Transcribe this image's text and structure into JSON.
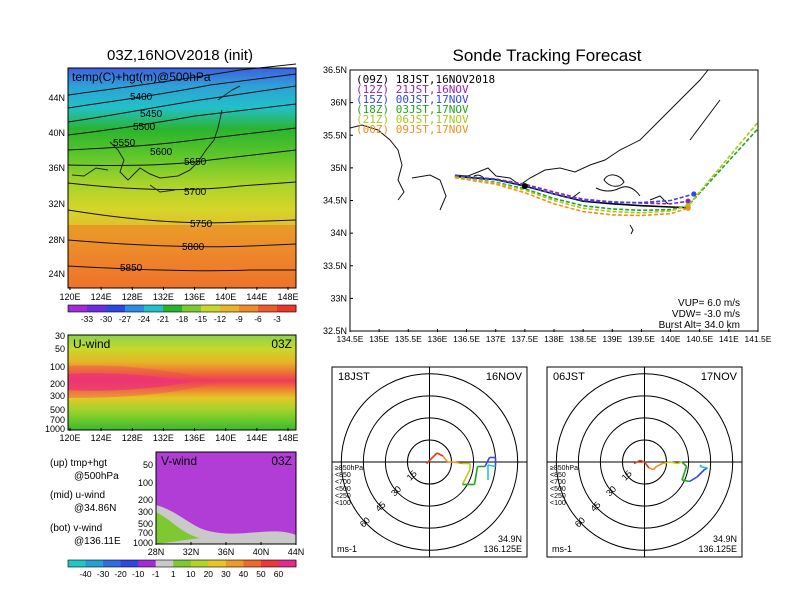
{
  "panels": {
    "map500": {
      "title": "03Z,16NOV2018 (init)",
      "label": "temp(C)+hgt(m)@500hPa",
      "xticks": [
        "120E",
        "124E",
        "128E",
        "132E",
        "136E",
        "140E",
        "144E",
        "148E"
      ],
      "yticks": [
        "44N",
        "40N",
        "36N",
        "32N",
        "28N",
        "24N"
      ],
      "contours": [
        "5400",
        "5450",
        "5500",
        "5550",
        "5600",
        "5650",
        "5700",
        "5750",
        "5800",
        "5850"
      ],
      "colorbar": [
        "-33",
        "-30",
        "-27",
        "-24",
        "-21",
        "-18",
        "-15",
        "-12",
        "-9",
        "-6",
        "-3"
      ]
    },
    "uwind": {
      "label": "U-wind",
      "time": "03Z",
      "yticks": [
        "30",
        "50",
        "100",
        "200",
        "300",
        "500",
        "700",
        "1000"
      ],
      "xticks": [
        "120E",
        "124E",
        "128E",
        "132E",
        "136E",
        "140E",
        "144E",
        "148E"
      ]
    },
    "vwind": {
      "label": "V-wind",
      "time": "03Z",
      "yticks": [
        "50",
        "100",
        "200",
        "300",
        "500",
        "700",
        "1000"
      ],
      "xticks": [
        "28N",
        "32N",
        "36N",
        "40N",
        "44N"
      ],
      "colorbar": [
        "-40",
        "-30",
        "-20",
        "-10",
        "-1",
        "1",
        "10",
        "20",
        "30",
        "40",
        "50",
        "60"
      ]
    },
    "legend": {
      "up": [
        "(up) tmp+hgt",
        "@500hPa"
      ],
      "mid": [
        "(mid) u-wind",
        "@34.86N"
      ],
      "bot": [
        "(bot) v-wind",
        "@136.11E"
      ]
    },
    "tracking": {
      "title": "Sonde Tracking Forecast",
      "runs": [
        {
          "label": "(09Z)  18JST,16NOV2018",
          "color": "#000000"
        },
        {
          "label": "(12Z)  21JST,16NOV",
          "color": "#9a1fb0"
        },
        {
          "label": "(15Z)  00JST,17NOV",
          "color": "#2f49e6"
        },
        {
          "label": "(18Z)  03JST,17NOV",
          "color": "#1fa51f"
        },
        {
          "label": "(21Z)  06JST,17NOV",
          "color": "#a7c81a"
        },
        {
          "label": "(00Z)  09JST,17NOV",
          "color": "#f0911e"
        }
      ],
      "xticks": [
        "134.5E",
        "135E",
        "135.5E",
        "136E",
        "136.5E",
        "137E",
        "137.5E",
        "138E",
        "138.5E",
        "139E",
        "139.5E",
        "140E",
        "140.5E",
        "141E",
        "141.5E"
      ],
      "yticks": [
        "36.5N",
        "36N",
        "35.5N",
        "35N",
        "34.5N",
        "34N",
        "33.5N",
        "33N",
        "32.5N"
      ],
      "params": [
        "VUP=  6.0  m/s",
        "VDW=  -3.0  m/s",
        "Burst Alt=  34.0  km"
      ]
    },
    "hodo1": {
      "time": "18JST",
      "date": "16NOV",
      "rings": [
        "15",
        "30",
        "45",
        "60"
      ],
      "levels": [
        "≥850hPa",
        "<850",
        "<700",
        "<500",
        "<250",
        "<100"
      ],
      "unit": "ms-1",
      "lat": "34.9N",
      "lon": "136.125E"
    },
    "hodo2": {
      "time": "06JST",
      "date": "17NOV",
      "rings": [
        "15",
        "30",
        "45",
        "60"
      ],
      "levels": [
        "≥850hPa",
        "<850",
        "<700",
        "<500",
        "<250",
        "<100"
      ],
      "unit": "ms-1",
      "lat": "34.9N",
      "lon": "136.125E"
    }
  },
  "level_colors": [
    "#e8361f",
    "#f0911e",
    "#c8c81a",
    "#1fa51f",
    "#2f49e6",
    "#1fc8c8"
  ],
  "chart_data": [
    {
      "type": "line",
      "title": "Sonde Tracking Forecast",
      "xlabel": "",
      "ylabel": "",
      "xlim": [
        134.5,
        141.5
      ],
      "ylim": [
        32.5,
        36.5
      ],
      "grid": false,
      "legend": "top-left",
      "series": [
        {
          "name": "(09Z) 18JST,16NOV2018",
          "points": [
            [
              136.3,
              34.87
            ],
            [
              137.0,
              34.82
            ],
            [
              137.5,
              34.72
            ],
            [
              138.0,
              34.6
            ],
            [
              138.5,
              34.49
            ],
            [
              139.0,
              34.45
            ],
            [
              139.5,
              34.42
            ],
            [
              140.0,
              34.4
            ],
            [
              140.3,
              34.39
            ]
          ]
        },
        {
          "name": "(12Z) 21JST,16NOV",
          "points": [
            [
              136.3,
              34.88
            ],
            [
              137.0,
              34.83
            ],
            [
              137.5,
              34.75
            ],
            [
              138.0,
              34.63
            ],
            [
              138.5,
              34.52
            ],
            [
              139.0,
              34.48
            ],
            [
              139.5,
              34.46
            ],
            [
              140.0,
              34.45
            ],
            [
              140.3,
              34.49
            ]
          ]
        },
        {
          "name": "(15Z) 00JST,17NOV",
          "points": [
            [
              136.3,
              34.88
            ],
            [
              137.0,
              34.82
            ],
            [
              137.5,
              34.73
            ],
            [
              138.0,
              34.6
            ],
            [
              138.5,
              34.5
            ],
            [
              139.0,
              34.47
            ],
            [
              139.5,
              34.47
            ],
            [
              140.0,
              34.5
            ],
            [
              140.4,
              34.6
            ]
          ]
        },
        {
          "name": "(18Z) 03JST,17NOV",
          "points": [
            [
              136.3,
              34.86
            ],
            [
              137.0,
              34.78
            ],
            [
              137.5,
              34.68
            ],
            [
              138.0,
              34.53
            ],
            [
              138.5,
              34.42
            ],
            [
              139.0,
              34.37
            ],
            [
              139.5,
              34.35
            ],
            [
              140.0,
              34.36
            ],
            [
              140.3,
              34.42
            ],
            [
              141.5,
              35.6
            ]
          ]
        },
        {
          "name": "(21Z) 06JST,17NOV",
          "points": [
            [
              136.3,
              34.86
            ],
            [
              137.0,
              34.77
            ],
            [
              137.5,
              34.66
            ],
            [
              138.0,
              34.5
            ],
            [
              138.5,
              34.38
            ],
            [
              139.0,
              34.33
            ],
            [
              139.5,
              34.31
            ],
            [
              140.0,
              34.34
            ],
            [
              140.3,
              34.42
            ],
            [
              141.5,
              35.7
            ]
          ]
        },
        {
          "name": "(00Z) 09JST,17NOV",
          "points": [
            [
              136.3,
              34.85
            ],
            [
              137.0,
              34.75
            ],
            [
              137.5,
              34.62
            ],
            [
              138.0,
              34.45
            ],
            [
              138.5,
              34.33
            ],
            [
              139.0,
              34.28
            ],
            [
              139.5,
              34.27
            ],
            [
              140.0,
              34.3
            ],
            [
              140.3,
              34.38
            ]
          ]
        }
      ]
    },
    {
      "type": "line",
      "title": "18JST 16NOV hodograph",
      "xlim": [
        -60,
        60
      ],
      "ylim": [
        -60,
        60
      ],
      "points": [
        [
          -2,
          -1
        ],
        [
          2,
          3
        ],
        [
          5,
          6
        ],
        [
          9,
          4
        ],
        [
          12,
          0
        ],
        [
          16,
          0
        ],
        [
          22,
          -1
        ],
        [
          27,
          -1
        ],
        [
          27,
          -5
        ],
        [
          22,
          -15
        ],
        [
          30,
          -15
        ],
        [
          32,
          -3
        ],
        [
          37,
          -3
        ],
        [
          40,
          3
        ],
        [
          44,
          3
        ],
        [
          44,
          -3
        ],
        [
          39,
          -2
        ],
        [
          39,
          -12
        ]
      ]
    },
    {
      "type": "line",
      "title": "06JST 17NOV hodograph",
      "xlim": [
        -60,
        60
      ],
      "ylim": [
        -60,
        60
      ],
      "points": [
        [
          -7,
          -1
        ],
        [
          -3,
          1
        ],
        [
          0,
          0
        ],
        [
          3,
          -4
        ],
        [
          6,
          -5
        ],
        [
          8,
          -3
        ],
        [
          12,
          -1
        ],
        [
          17,
          0
        ],
        [
          22,
          -1
        ],
        [
          25,
          0
        ],
        [
          28,
          -3
        ],
        [
          25,
          -12
        ],
        [
          30,
          -13
        ],
        [
          35,
          -10
        ],
        [
          40,
          -5
        ],
        [
          42,
          -4
        ],
        [
          37,
          -3
        ],
        [
          38,
          -2
        ]
      ]
    }
  ]
}
